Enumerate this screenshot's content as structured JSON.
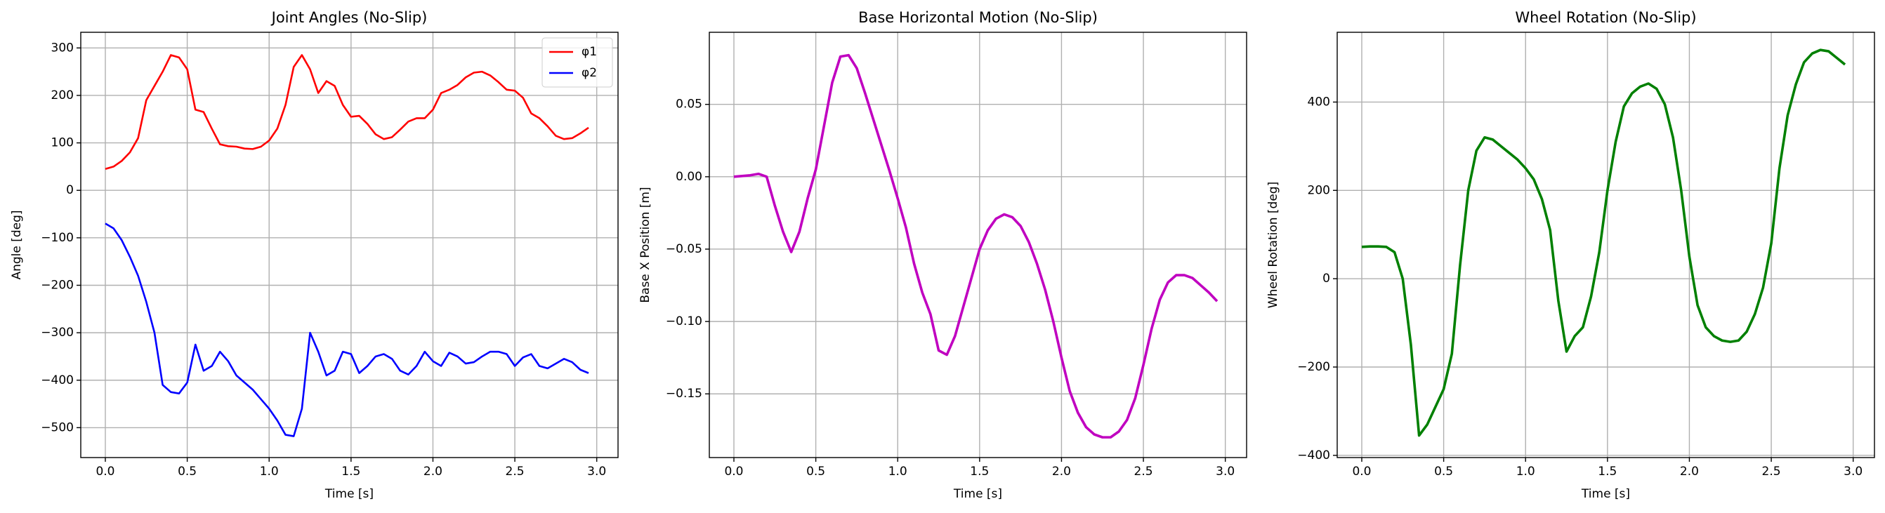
{
  "chart_data": [
    {
      "type": "line",
      "title": "Joint Angles (No-Slip)",
      "x_label": "Time [s]",
      "y_label": "Angle [deg]",
      "x": [
        0,
        0.05,
        0.1,
        0.15,
        0.2,
        0.25,
        0.3,
        0.35,
        0.4,
        0.45,
        0.5,
        0.55,
        0.6,
        0.65,
        0.7,
        0.75,
        0.8,
        0.85,
        0.9,
        0.95,
        1.0,
        1.05,
        1.1,
        1.15,
        1.2,
        1.25,
        1.3,
        1.35,
        1.4,
        1.45,
        1.5,
        1.55,
        1.6,
        1.65,
        1.7,
        1.75,
        1.8,
        1.85,
        1.9,
        1.95,
        2.0,
        2.05,
        2.1,
        2.15,
        2.2,
        2.25,
        2.3,
        2.35,
        2.4,
        2.45,
        2.5,
        2.55,
        2.6,
        2.65,
        2.7,
        2.75,
        2.8,
        2.85,
        2.9,
        2.95
      ],
      "series": [
        {
          "name": "φ1",
          "color": "#ff0000",
          "values": [
            45,
            50,
            62,
            80,
            110,
            190,
            220,
            250,
            285,
            280,
            255,
            170,
            165,
            130,
            97,
            93,
            92,
            88,
            87,
            92,
            105,
            130,
            180,
            260,
            285,
            255,
            205,
            230,
            220,
            180,
            155,
            157,
            140,
            118,
            108,
            112,
            128,
            145,
            152,
            152,
            170,
            205,
            212,
            222,
            238,
            248,
            250,
            242,
            228,
            212,
            210,
            195,
            162,
            152,
            135,
            115,
            108,
            110,
            120,
            132
          ]
        },
        {
          "name": "φ2",
          "color": "#0000ff",
          "values": [
            -70,
            -80,
            -105,
            -140,
            -180,
            -235,
            -300,
            -410,
            -425,
            -428,
            -405,
            -325,
            -380,
            -370,
            -340,
            -360,
            -390,
            -405,
            -420,
            -440,
            -460,
            -485,
            -515,
            -518,
            -460,
            -300,
            -340,
            -390,
            -380,
            -340,
            -345,
            -385,
            -370,
            -350,
            -345,
            -355,
            -380,
            -388,
            -370,
            -340,
            -360,
            -370,
            -342,
            -350,
            -365,
            -362,
            -350,
            -340,
            -340,
            -345,
            -370,
            -352,
            -345,
            -370,
            -375,
            -365,
            -355,
            -362,
            -378,
            -385
          ]
        }
      ],
      "xlim": [
        -0.15,
        3.13
      ],
      "ylim": [
        -563,
        333
      ],
      "xticks": [
        {
          "value": 0,
          "label": "0.0"
        },
        {
          "value": 0.5,
          "label": "0.5"
        },
        {
          "value": 1,
          "label": "1.0"
        },
        {
          "value": 1.5,
          "label": "1.5"
        },
        {
          "value": 2,
          "label": "2.0"
        },
        {
          "value": 2.5,
          "label": "2.5"
        },
        {
          "value": 3,
          "label": "3.0"
        }
      ],
      "yticks": [
        {
          "value": -500,
          "label": "−500"
        },
        {
          "value": -400,
          "label": "−400"
        },
        {
          "value": -300,
          "label": "−300"
        },
        {
          "value": -200,
          "label": "−200"
        },
        {
          "value": -100,
          "label": "−100"
        },
        0,
        100,
        200,
        300
      ],
      "grid": true,
      "legend": "upper right"
    },
    {
      "type": "line",
      "title": "Base Horizontal Motion (No-Slip)",
      "x_label": "Time [s]",
      "y_label": "Base X Position [m]",
      "x": [
        0,
        0.05,
        0.1,
        0.15,
        0.2,
        0.25,
        0.3,
        0.35,
        0.4,
        0.45,
        0.5,
        0.55,
        0.6,
        0.65,
        0.7,
        0.75,
        0.8,
        0.85,
        0.9,
        0.95,
        1.0,
        1.05,
        1.1,
        1.15,
        1.2,
        1.25,
        1.3,
        1.35,
        1.4,
        1.45,
        1.5,
        1.55,
        1.6,
        1.65,
        1.7,
        1.75,
        1.8,
        1.85,
        1.9,
        1.95,
        2.0,
        2.05,
        2.1,
        2.15,
        2.2,
        2.25,
        2.3,
        2.35,
        2.4,
        2.45,
        2.5,
        2.55,
        2.6,
        2.65,
        2.7,
        2.75,
        2.8,
        2.85,
        2.9,
        2.95
      ],
      "series": [
        {
          "color": "#c000c0",
          "values": [
            0,
            0.0005,
            0.001,
            0.002,
            0,
            -0.02,
            -0.038,
            -0.052,
            -0.038,
            -0.015,
            0.005,
            0.035,
            0.065,
            0.083,
            0.084,
            0.075,
            0.058,
            0.04,
            0.022,
            0.004,
            -0.015,
            -0.035,
            -0.06,
            -0.08,
            -0.095,
            -0.12,
            -0.123,
            -0.11,
            -0.09,
            -0.07,
            -0.05,
            -0.037,
            -0.029,
            -0.026,
            -0.028,
            -0.034,
            -0.045,
            -0.06,
            -0.078,
            -0.1,
            -0.125,
            -0.148,
            -0.163,
            -0.173,
            -0.178,
            -0.18,
            -0.18,
            -0.176,
            -0.168,
            -0.153,
            -0.13,
            -0.105,
            -0.085,
            -0.073,
            -0.068,
            -0.068,
            -0.07,
            -0.075,
            -0.08,
            -0.086
          ]
        }
      ],
      "xlim": [
        -0.15,
        3.13
      ],
      "ylim": [
        -0.194,
        0.0998
      ],
      "xticks": [
        {
          "value": 0,
          "label": "0.0"
        },
        {
          "value": 0.5,
          "label": "0.5"
        },
        {
          "value": 1,
          "label": "1.0"
        },
        {
          "value": 1.5,
          "label": "1.5"
        },
        {
          "value": 2,
          "label": "2.0"
        },
        {
          "value": 2.5,
          "label": "2.5"
        },
        {
          "value": 3,
          "label": "3.0"
        }
      ],
      "yticks": [
        {
          "value": -0.15,
          "label": "−0.15"
        },
        {
          "value": -0.1,
          "label": "−0.10"
        },
        {
          "value": -0.05,
          "label": "−0.05"
        },
        {
          "value": 0,
          "label": "0.00"
        },
        0.05
      ],
      "grid": true
    },
    {
      "type": "line",
      "title": "Wheel Rotation (No-Slip)",
      "x_label": "Time [s]",
      "y_label": "Wheel Rotation [deg]",
      "x": [
        0,
        0.05,
        0.1,
        0.15,
        0.2,
        0.25,
        0.3,
        0.35,
        0.4,
        0.45,
        0.5,
        0.55,
        0.6,
        0.65,
        0.7,
        0.75,
        0.8,
        0.85,
        0.9,
        0.95,
        1.0,
        1.05,
        1.1,
        1.15,
        1.2,
        1.25,
        1.3,
        1.35,
        1.4,
        1.45,
        1.5,
        1.55,
        1.6,
        1.65,
        1.7,
        1.75,
        1.8,
        1.85,
        1.9,
        1.95,
        2.0,
        2.05,
        2.1,
        2.15,
        2.2,
        2.25,
        2.3,
        2.35,
        2.4,
        2.45,
        2.5,
        2.55,
        2.6,
        2.65,
        2.7,
        2.75,
        2.8,
        2.85,
        2.9,
        2.95
      ],
      "series": [
        {
          "color": "#008000",
          "values": [
            72,
            73,
            73,
            72,
            60,
            0,
            -150,
            -355,
            -330,
            -290,
            -250,
            -170,
            30,
            200,
            290,
            320,
            315,
            300,
            285,
            270,
            250,
            225,
            180,
            110,
            -50,
            -165,
            -130,
            -110,
            -40,
            60,
            200,
            310,
            390,
            420,
            435,
            442,
            430,
            395,
            320,
            200,
            50,
            -60,
            -110,
            -130,
            -140,
            -143,
            -140,
            -120,
            -80,
            -20,
            80,
            250,
            370,
            440,
            490,
            510,
            518,
            515,
            500,
            485
          ]
        }
      ],
      "xlim": [
        -0.15,
        3.13
      ],
      "ylim": [
        -405,
        558
      ],
      "xticks": [
        {
          "value": 0,
          "label": "0.0"
        },
        {
          "value": 0.5,
          "label": "0.5"
        },
        {
          "value": 1,
          "label": "1.0"
        },
        {
          "value": 1.5,
          "label": "1.5"
        },
        {
          "value": 2,
          "label": "2.0"
        },
        {
          "value": 2.5,
          "label": "2.5"
        },
        {
          "value": 3,
          "label": "3.0"
        }
      ],
      "yticks": [
        {
          "value": -400,
          "label": "−400"
        },
        {
          "value": -200,
          "label": "−200"
        },
        0,
        200,
        400
      ],
      "grid": true
    }
  ]
}
